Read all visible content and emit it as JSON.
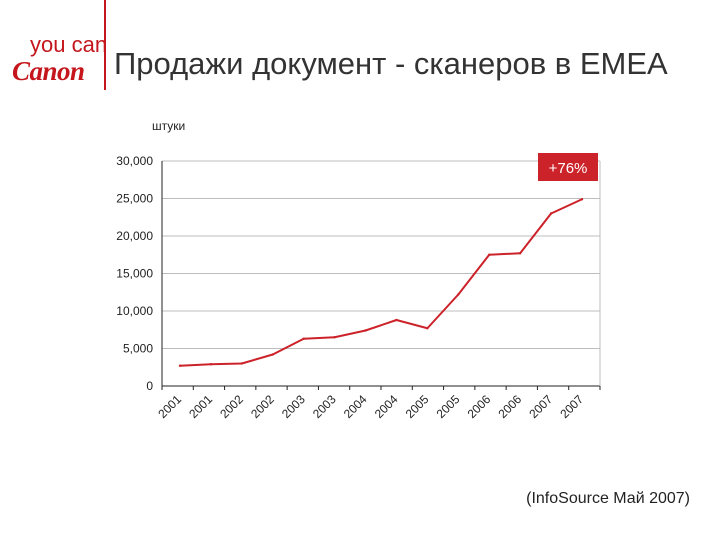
{
  "logo": {
    "tagline": "you can",
    "brand": "Canon"
  },
  "title": "Продажи документ - сканеров в EMEA",
  "source": "(InfoSource Май 2007)",
  "colors": {
    "accent": "#c4161c",
    "line": "#cc2229"
  },
  "chart_data": {
    "type": "line",
    "title": "Продажи документ - сканеров в EMEA",
    "ylabel": "штуки",
    "xlabel": "",
    "ylim": [
      0,
      30000
    ],
    "y_ticks": [
      "0",
      "5,000",
      "10,000",
      "15,000",
      "20,000",
      "25,000",
      "30,000"
    ],
    "grid": true,
    "legend": "none",
    "categories": [
      "2001",
      "2001",
      "2002",
      "2002",
      "2003",
      "2003",
      "2004",
      "2004",
      "2005",
      "2005",
      "2006",
      "2006",
      "2007",
      "2007"
    ],
    "series": [
      {
        "values": [
          2700,
          2900,
          3000,
          4200,
          6300,
          6500,
          7400,
          8800,
          7700,
          12200,
          17500,
          17700,
          23000,
          24900
        ]
      }
    ],
    "annotations": [
      {
        "text": "+76%",
        "position": "top-right"
      }
    ]
  }
}
